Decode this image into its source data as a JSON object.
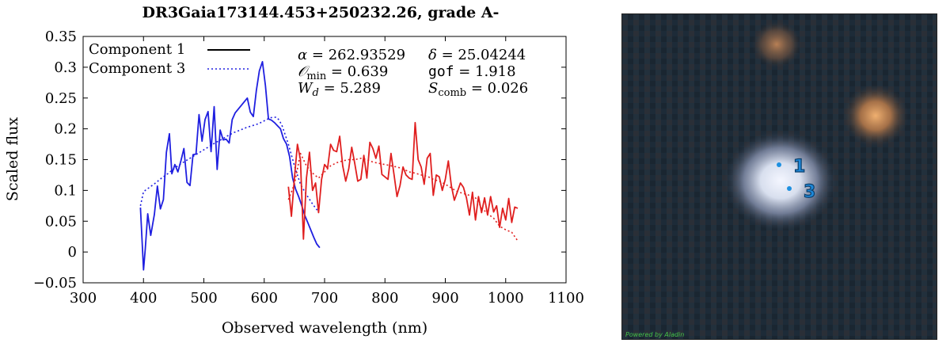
{
  "chart_data": {
    "type": "line",
    "title": "DR3Gaia173144.453+250232.26, grade A-",
    "xlabel": "Observed wavelength (nm)",
    "ylabel": "Scaled flux",
    "xlim": [
      300,
      1100
    ],
    "ylim": [
      -0.05,
      0.35
    ],
    "xticks": [
      300,
      400,
      500,
      600,
      700,
      800,
      900,
      1000,
      1100
    ],
    "yticks": [
      -0.05,
      0,
      0.05,
      0.1,
      0.15,
      0.2,
      0.25,
      0.3,
      0.35
    ],
    "xtick_labels": [
      "300",
      "400",
      "500",
      "600",
      "700",
      "800",
      "900",
      "1000",
      "1100"
    ],
    "ytick_labels": [
      "−0.05",
      "0",
      "0.05",
      "0.1",
      "0.15",
      "0.2",
      "0.25",
      "0.3",
      "0.35"
    ],
    "grid": false,
    "legend_position": "top-left",
    "legend": [
      {
        "label": "Component 1",
        "style": "solid"
      },
      {
        "label": "Component 3",
        "style": "dotted"
      }
    ],
    "annotations": {
      "alpha": {
        "symbol": "α",
        "value": "262.93529"
      },
      "delta": {
        "symbol": "δ",
        "value": "25.04244"
      },
      "omin": {
        "symbol": "𝒪",
        "sub": "min",
        "value": "0.639"
      },
      "gof": {
        "symbol": "gof",
        "value": "1.918"
      },
      "wd": {
        "symbol": "W",
        "sub": "d",
        "value": "5.289"
      },
      "scomb": {
        "symbol": "S",
        "sub": "comb",
        "value": "0.026"
      }
    },
    "series": [
      {
        "name": "Component 1",
        "color": "#1f1fe0",
        "style": "solid",
        "x": [
          395,
          400,
          403,
          407,
          412,
          418,
          423,
          428,
          433,
          438,
          443,
          447,
          452,
          457,
          462,
          467,
          472,
          477,
          482,
          487,
          492,
          497,
          502,
          507,
          512,
          517,
          522,
          527,
          532,
          537,
          542,
          547,
          552,
          557,
          562,
          567,
          572,
          577,
          582,
          587,
          592,
          597,
          602,
          607,
          612,
          617,
          622,
          627,
          632,
          637,
          642,
          647,
          652,
          657,
          662,
          667,
          672,
          677,
          682,
          687,
          692
        ],
        "y": [
          0.072,
          -0.029,
          0.005,
          0.062,
          0.027,
          0.061,
          0.107,
          0.07,
          0.085,
          0.162,
          0.192,
          0.127,
          0.142,
          0.13,
          0.148,
          0.168,
          0.113,
          0.108,
          0.158,
          0.159,
          0.223,
          0.18,
          0.215,
          0.228,
          0.163,
          0.236,
          0.134,
          0.198,
          0.182,
          0.183,
          0.177,
          0.215,
          0.226,
          0.232,
          0.238,
          0.244,
          0.25,
          0.227,
          0.22,
          0.262,
          0.294,
          0.309,
          0.27,
          0.216,
          0.214,
          0.21,
          0.205,
          0.2,
          0.184,
          0.175,
          0.155,
          0.12,
          0.102,
          0.09,
          0.076,
          0.06,
          0.048,
          0.036,
          0.024,
          0.013,
          0.007
        ]
      },
      {
        "name": "Component 3",
        "color": "#1f1fe0",
        "style": "dotted",
        "x": [
          395,
          400,
          410,
          420,
          430,
          440,
          450,
          460,
          470,
          480,
          490,
          500,
          510,
          520,
          530,
          540,
          550,
          560,
          570,
          580,
          590,
          600,
          610,
          620,
          625,
          630,
          640,
          650,
          660,
          670,
          680,
          690
        ],
        "y": [
          0.075,
          0.098,
          0.105,
          0.112,
          0.12,
          0.127,
          0.135,
          0.142,
          0.148,
          0.154,
          0.16,
          0.166,
          0.172,
          0.178,
          0.183,
          0.189,
          0.194,
          0.198,
          0.202,
          0.205,
          0.208,
          0.213,
          0.218,
          0.219,
          0.214,
          0.204,
          0.175,
          0.14,
          0.11,
          0.093,
          0.078,
          0.065
        ]
      },
      {
        "name": "Component 1",
        "color": "#e01f1f",
        "style": "solid",
        "x": [
          640,
          645,
          650,
          655,
          660,
          665,
          670,
          675,
          680,
          685,
          690,
          695,
          700,
          705,
          710,
          715,
          720,
          725,
          730,
          735,
          740,
          745,
          750,
          755,
          760,
          765,
          770,
          775,
          780,
          785,
          790,
          795,
          800,
          805,
          810,
          815,
          820,
          825,
          830,
          835,
          840,
          845,
          850,
          855,
          860,
          865,
          870,
          875,
          880,
          885,
          890,
          895,
          900,
          905,
          910,
          915,
          920,
          925,
          930,
          935,
          940,
          945,
          950,
          955,
          960,
          965,
          970,
          975,
          980,
          985,
          990,
          995,
          1000,
          1005,
          1010,
          1015,
          1020
        ],
        "y": [
          0.106,
          0.058,
          0.12,
          0.175,
          0.15,
          0.021,
          0.12,
          0.162,
          0.1,
          0.112,
          0.064,
          0.118,
          0.142,
          0.136,
          0.175,
          0.165,
          0.163,
          0.188,
          0.14,
          0.115,
          0.135,
          0.17,
          0.144,
          0.115,
          0.118,
          0.157,
          0.12,
          0.178,
          0.168,
          0.152,
          0.172,
          0.126,
          0.122,
          0.118,
          0.16,
          0.126,
          0.09,
          0.108,
          0.138,
          0.125,
          0.12,
          0.118,
          0.21,
          0.15,
          0.138,
          0.11,
          0.152,
          0.16,
          0.092,
          0.125,
          0.122,
          0.1,
          0.118,
          0.148,
          0.108,
          0.084,
          0.098,
          0.112,
          0.105,
          0.088,
          0.06,
          0.097,
          0.052,
          0.09,
          0.064,
          0.088,
          0.06,
          0.09,
          0.065,
          0.075,
          0.04,
          0.071,
          0.052,
          0.087,
          0.048,
          0.073,
          0.071
        ]
      },
      {
        "name": "Component 3",
        "color": "#e01f1f",
        "style": "dotted",
        "x": [
          640,
          650,
          660,
          670,
          680,
          690,
          700,
          710,
          720,
          730,
          740,
          750,
          760,
          770,
          780,
          790,
          800,
          810,
          820,
          830,
          840,
          850,
          860,
          870,
          880,
          890,
          900,
          910,
          920,
          930,
          940,
          950,
          960,
          970,
          980,
          990,
          1000,
          1010,
          1020
        ],
        "y": [
          0.085,
          0.11,
          0.16,
          0.14,
          0.128,
          0.12,
          0.13,
          0.14,
          0.145,
          0.148,
          0.15,
          0.15,
          0.152,
          0.15,
          0.146,
          0.144,
          0.142,
          0.14,
          0.138,
          0.135,
          0.13,
          0.128,
          0.125,
          0.123,
          0.118,
          0.115,
          0.11,
          0.104,
          0.098,
          0.095,
          0.092,
          0.088,
          0.072,
          0.062,
          0.055,
          0.042,
          0.036,
          0.032,
          0.018
        ]
      }
    ]
  },
  "sky_image": {
    "credit": "Powered by Aladin",
    "markers": [
      {
        "label": "1"
      },
      {
        "label": "3"
      }
    ]
  }
}
